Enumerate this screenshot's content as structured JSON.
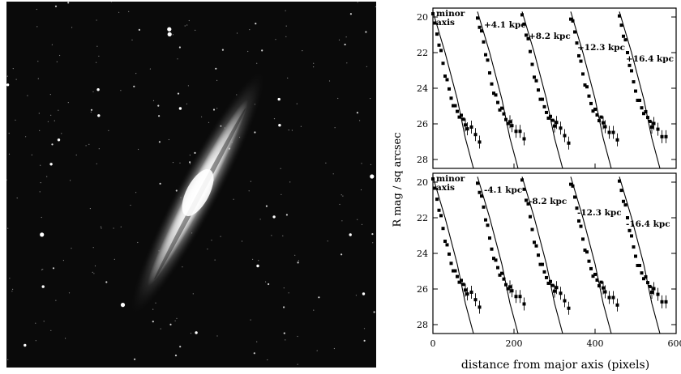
{
  "figure": {
    "image_description": "Negative/grayscale telescope image of an edge-on spiral galaxy tilted diagonally, surrounded by field stars on a black background",
    "chart_data": {
      "type": "scatter",
      "xlabel": "distance from major axis (pixels)",
      "ylabel": "R mag / sq arcsec",
      "xlim": [
        0,
        600
      ],
      "ylim": [
        28.5,
        19.5
      ],
      "y_inverted": true,
      "xticks": [
        "0",
        "200",
        "400",
        "600"
      ],
      "yticks": [
        "20",
        "22",
        "24",
        "26",
        "28"
      ],
      "grid": false,
      "panels": [
        {
          "name": "top",
          "curve_labels": [
            "minor axis",
            "+4.1 kpc",
            "+8.2 kpc",
            "+12.3 kpc",
            "+16.4 kpc"
          ],
          "series": [
            {
              "label": "minor axis",
              "x_offset": 0
            },
            {
              "label": "+4.1 kpc",
              "x_offset": 110
            },
            {
              "label": "+8.2 kpc",
              "x_offset": 220
            },
            {
              "label": "+12.3 kpc",
              "x_offset": 340
            },
            {
              "label": "+16.4 kpc",
              "x_offset": 460
            }
          ]
        },
        {
          "name": "bottom",
          "curve_labels": [
            "minor axis",
            "-4.1 kpc",
            "-8.2 kpc",
            "-12.3 kpc",
            "-16.4 kpc"
          ],
          "series": [
            {
              "label": "minor axis",
              "x_offset": 0
            },
            {
              "label": "-4.1 kpc",
              "x_offset": 110
            },
            {
              "label": "-8.2 kpc",
              "x_offset": 220
            },
            {
              "label": "-12.3 kpc",
              "x_offset": 340
            },
            {
              "label": "-16.4 kpc",
              "x_offset": 460
            }
          ]
        }
      ],
      "profile_points": [
        [
          0,
          20.0
        ],
        [
          5,
          20.4
        ],
        [
          10,
          20.9
        ],
        [
          15,
          21.4
        ],
        [
          20,
          22.0
        ],
        [
          25,
          22.6
        ],
        [
          30,
          23.2
        ],
        [
          35,
          23.7
        ],
        [
          40,
          24.1
        ],
        [
          45,
          24.5
        ],
        [
          50,
          24.8
        ],
        [
          55,
          25.1
        ],
        [
          60,
          25.3
        ],
        [
          65,
          25.5
        ],
        [
          70,
          25.7
        ],
        [
          75,
          25.8
        ],
        [
          80,
          26.0
        ],
        [
          85,
          26.1
        ],
        [
          95,
          26.3
        ],
        [
          105,
          26.6
        ],
        [
          115,
          26.9
        ]
      ],
      "model_line": [
        [
          0,
          19.7
        ],
        [
          30,
          22.0
        ],
        [
          60,
          24.6
        ],
        [
          80,
          26.8
        ],
        [
          100,
          28.5
        ]
      ]
    }
  }
}
